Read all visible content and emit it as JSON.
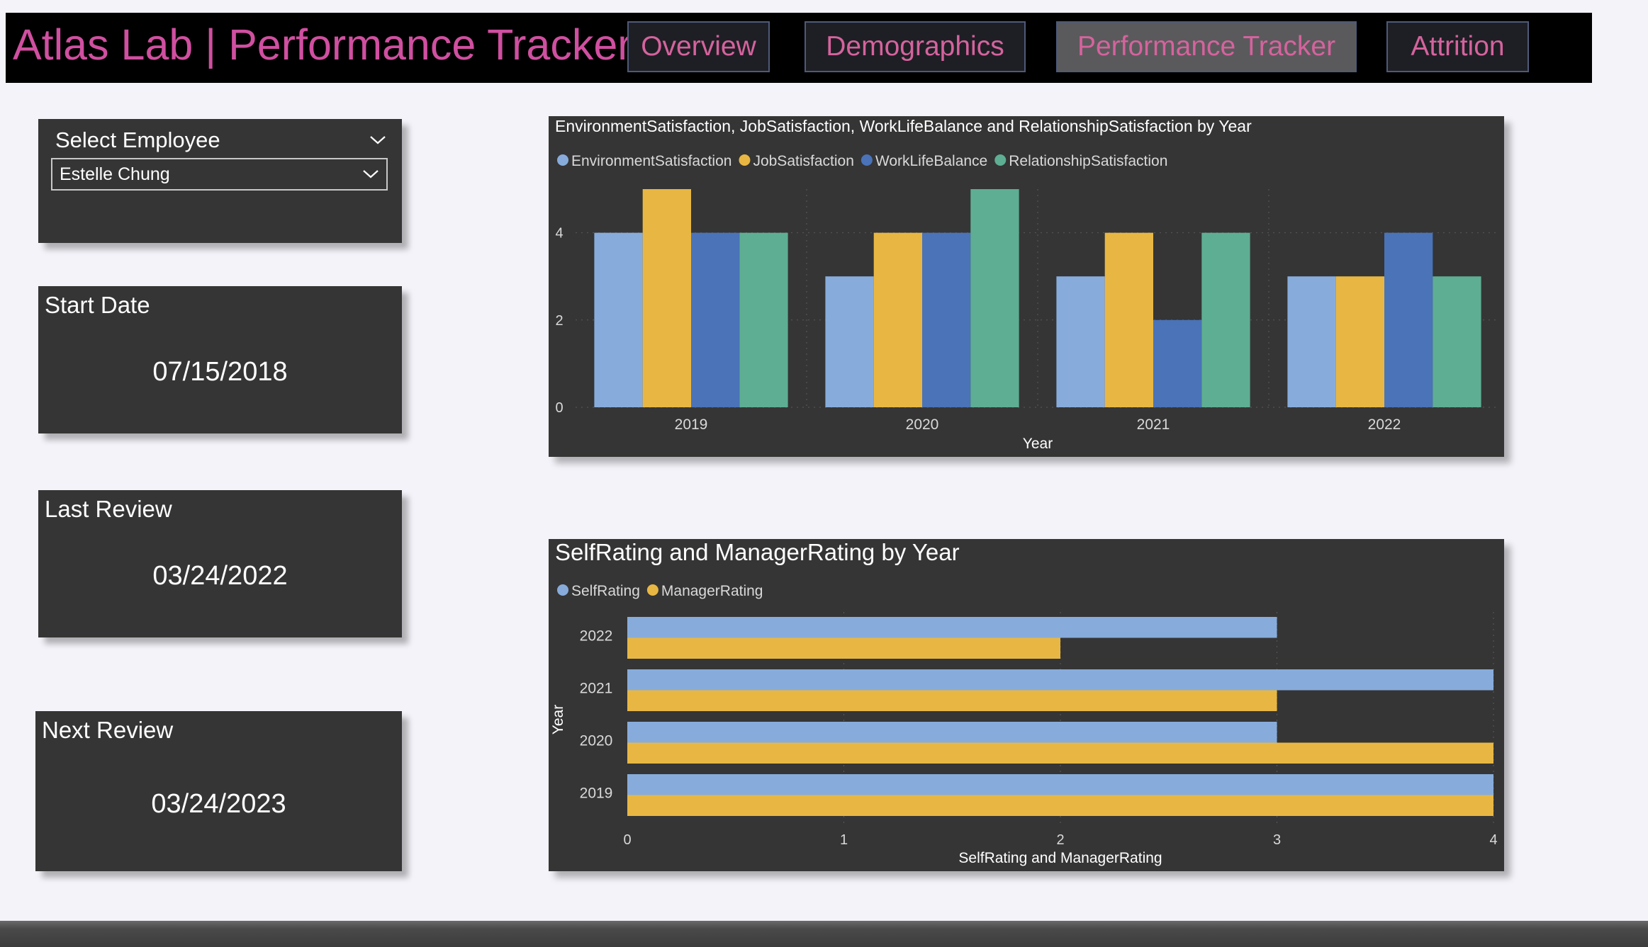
{
  "header": {
    "title": "Atlas Lab | Performance Tracker",
    "nav": [
      {
        "label": "Overview",
        "active": false
      },
      {
        "label": "Demographics",
        "active": false
      },
      {
        "label": "Performance Tracker",
        "active": true
      },
      {
        "label": "Attrition",
        "active": false
      }
    ]
  },
  "slicer": {
    "title": "Select Employee",
    "selected": "Estelle Chung",
    "header_icon": "chevron-down-icon",
    "dropdown_icon": "chevron-down-icon"
  },
  "cards": {
    "start_date": {
      "title": "Start Date",
      "value": "07/15/2018"
    },
    "last_review": {
      "title": "Last Review",
      "value": "03/24/2022"
    },
    "next_review": {
      "title": "Next Review",
      "value": "03/24/2023"
    }
  },
  "colors": {
    "title": "#d04fa0",
    "nav_text": "#d5639d",
    "panel": "#353535",
    "EnvironmentSatisfaction": "#87acdb",
    "JobSatisfaction": "#e8b743",
    "WorkLifeBalance": "#4a73b8",
    "RelationshipSatisfaction": "#5eae93",
    "SelfRating": "#87acdb",
    "ManagerRating": "#e8b743"
  },
  "chart_data": [
    {
      "type": "bar",
      "title": "EnvironmentSatisfaction, JobSatisfaction, WorkLifeBalance and RelationshipSatisfaction by Year",
      "xlabel": "Year",
      "ylabel": "",
      "categories": [
        "2019",
        "2020",
        "2021",
        "2022"
      ],
      "series": [
        {
          "name": "EnvironmentSatisfaction",
          "values": [
            4,
            3,
            3,
            3
          ]
        },
        {
          "name": "JobSatisfaction",
          "values": [
            5,
            4,
            4,
            3
          ]
        },
        {
          "name": "WorkLifeBalance",
          "values": [
            4,
            4,
            2,
            4
          ]
        },
        {
          "name": "RelationshipSatisfaction",
          "values": [
            4,
            5,
            4,
            3
          ]
        }
      ],
      "ylim": [
        0,
        5
      ],
      "yticks": [
        "0",
        "2",
        "4"
      ],
      "legend": "top-left",
      "grid": true
    },
    {
      "type": "bar",
      "orientation": "horizontal",
      "title": "SelfRating and ManagerRating by Year",
      "xlabel": "SelfRating and ManagerRating",
      "ylabel": "Year",
      "categories": [
        "2022",
        "2021",
        "2020",
        "2019"
      ],
      "series": [
        {
          "name": "SelfRating",
          "values": [
            3,
            4,
            3,
            4
          ]
        },
        {
          "name": "ManagerRating",
          "values": [
            2,
            3,
            4,
            4
          ]
        }
      ],
      "xlim": [
        0,
        4
      ],
      "xticks": [
        "0",
        "1",
        "2",
        "3",
        "4"
      ],
      "legend": "top-left",
      "grid": true
    }
  ]
}
